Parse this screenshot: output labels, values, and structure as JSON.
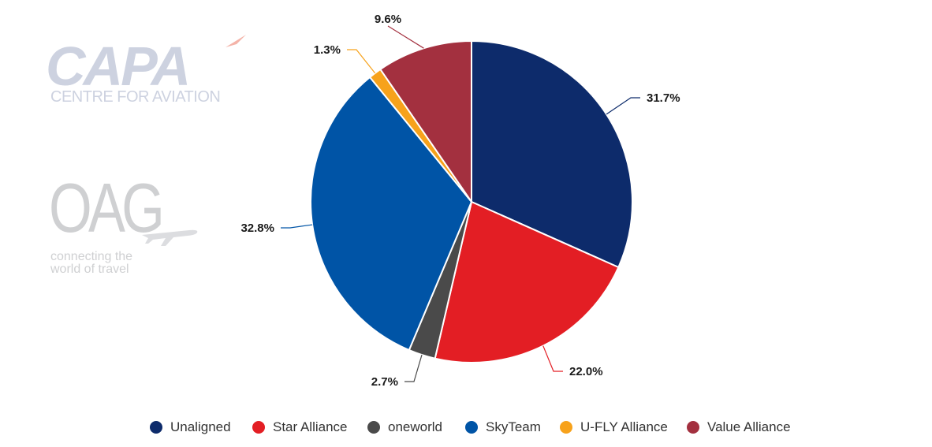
{
  "chart_data": {
    "type": "pie",
    "title": "",
    "slices": [
      {
        "name": "Unaligned",
        "value": 31.7,
        "label": "31.7%",
        "color": "#0d2b6b"
      },
      {
        "name": "Star Alliance",
        "value": 22.0,
        "label": "22.0%",
        "color": "#e31e24"
      },
      {
        "name": "oneworld",
        "value": 2.7,
        "label": "2.7%",
        "color": "#4a4a4a"
      },
      {
        "name": "SkyTeam",
        "value": 32.8,
        "label": "32.8%",
        "color": "#0054a6"
      },
      {
        "name": "U-FLY Alliance",
        "value": 1.3,
        "label": "1.3%",
        "color": "#f7a21b"
      },
      {
        "name": "Value Alliance",
        "value": 9.6,
        "label": "9.6%",
        "color": "#a3303f"
      }
    ],
    "legend_position": "bottom"
  },
  "watermarks": {
    "capa_word": "CAPA",
    "capa_sub": "CENTRE FOR AVIATION",
    "oag_word": "OAG",
    "oag_sub_line1": "connecting the",
    "oag_sub_line2": "world of travel"
  }
}
